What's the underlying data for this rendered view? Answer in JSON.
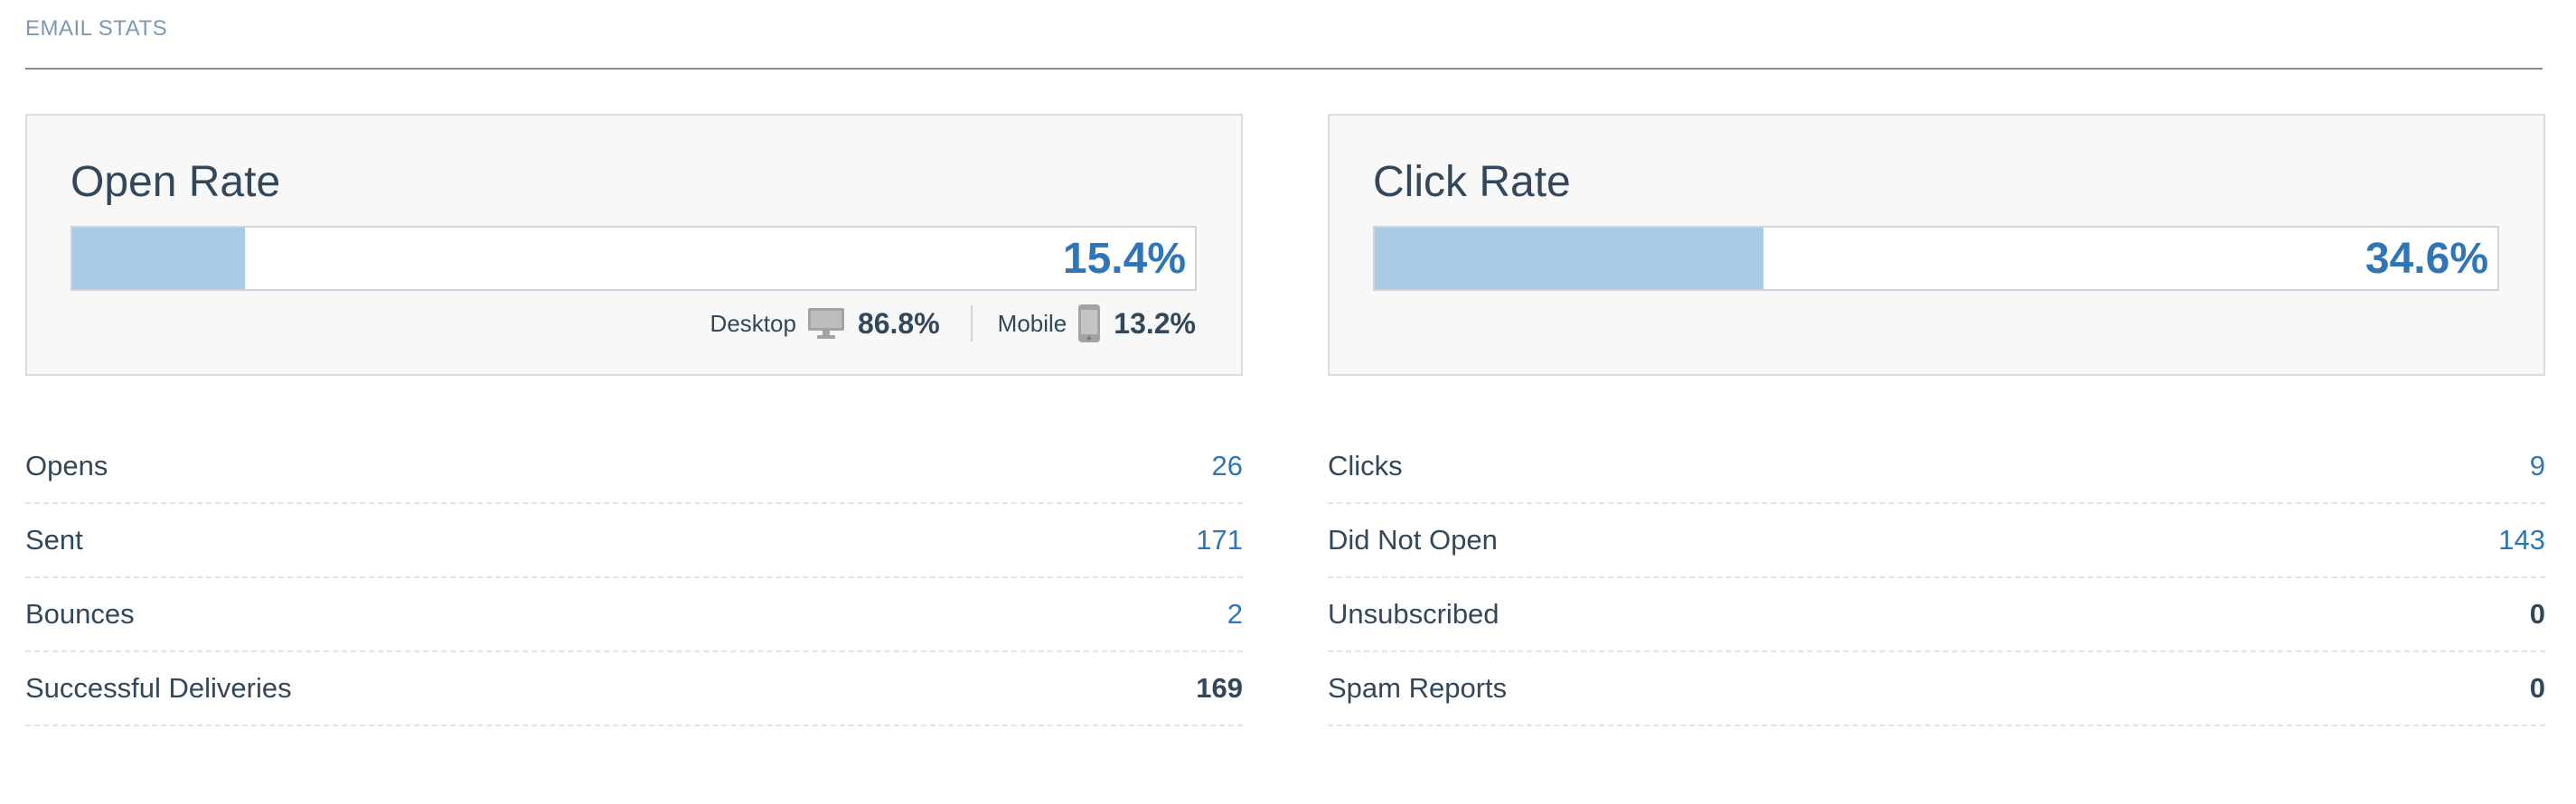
{
  "header": {
    "title": "EMAIL STATS"
  },
  "open_rate": {
    "title": "Open Rate",
    "value": "15.4%",
    "fill_fraction": 0.154,
    "desktop": {
      "label": "Desktop",
      "value": "86.8%",
      "icon": "desktop-monitor-icon"
    },
    "mobile": {
      "label": "Mobile",
      "value": "13.2%",
      "icon": "mobile-phone-icon"
    }
  },
  "click_rate": {
    "title": "Click Rate",
    "value": "34.6%",
    "fill_fraction": 0.346
  },
  "left_stats": [
    {
      "label": "Opens",
      "value": "26"
    },
    {
      "label": "Sent",
      "value": "171"
    },
    {
      "label": "Bounces",
      "value": "2"
    },
    {
      "label": "Successful Deliveries",
      "value": "169"
    }
  ],
  "right_stats": [
    {
      "label": "Clicks",
      "value": "9"
    },
    {
      "label": "Did Not Open",
      "value": "143"
    },
    {
      "label": "Unsubscribed",
      "value": "0"
    },
    {
      "label": "Spam Reports",
      "value": "0"
    }
  ],
  "colors": {
    "accent": "#2f76b8",
    "bar_fill": "#a9cce4",
    "text": "#33475b",
    "muted": "#7c98b6"
  }
}
